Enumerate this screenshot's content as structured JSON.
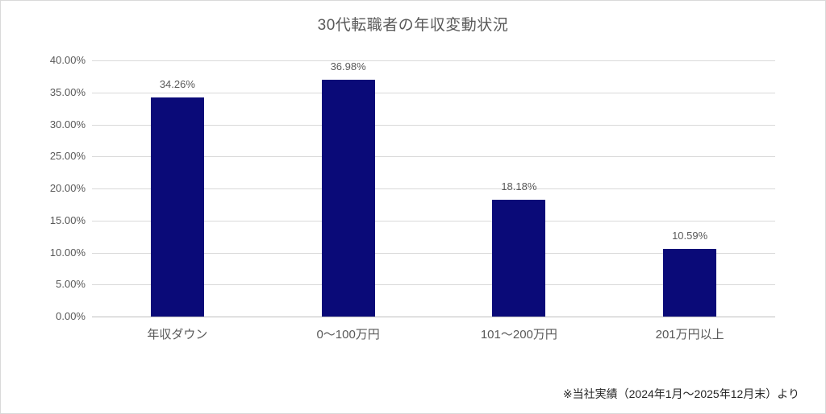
{
  "page": {
    "background": "#ffffff",
    "frame_border_color": "#d9d9d9"
  },
  "chart_data": {
    "type": "bar",
    "title": "30代転職者の年収変動状況",
    "categories": [
      "年収ダウン",
      "0～100万円",
      "101～200万円",
      "201万円以上"
    ],
    "values": [
      34.26,
      36.98,
      18.18,
      10.59
    ],
    "value_labels": [
      "34.26%",
      "36.98%",
      "18.18%",
      "10.59%"
    ],
    "xlabel": "",
    "ylabel": "",
    "ylim": [
      0,
      40
    ],
    "ytick_step": 5,
    "ytick_labels": [
      "0.00%",
      "5.00%",
      "10.00%",
      "15.00%",
      "20.00%",
      "25.00%",
      "30.00%",
      "35.00%",
      "40.00%"
    ],
    "grid": true,
    "legend_position": "none",
    "bar_color": "#0a0a78",
    "text_color": "#595959",
    "gridline_color": "#d9d9d9",
    "axisline_color": "#bfbfbf"
  },
  "footnote": {
    "text": "※当社実績（2024年1月～2025年12月末）より"
  }
}
